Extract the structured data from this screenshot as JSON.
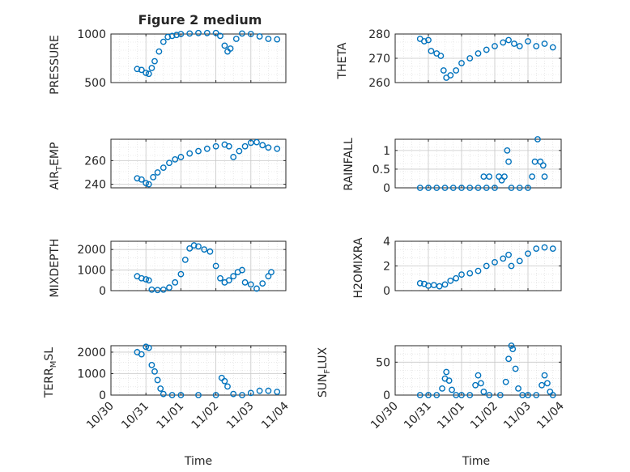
{
  "figure": {
    "title": "Figure 2 medium",
    "series_color": "#0072bd",
    "x_tick_labels": [
      "10/30",
      "10/31",
      "11/01",
      "11/02",
      "11/03",
      "11/04"
    ],
    "x_label": "Time"
  },
  "chart_data": [
    {
      "type": "scatter",
      "id": "pressure",
      "ylabel": "PRESSURE",
      "xlim": [
        "10/30",
        "11/04"
      ],
      "ylim": [
        500,
        1000
      ],
      "yticks": [
        500,
        1000
      ],
      "grid": true,
      "points": [
        [
          "10/30 18:00",
          640
        ],
        [
          "10/30 21:00",
          630
        ],
        [
          "10/31 00:00",
          600
        ],
        [
          "10/31 02:00",
          590
        ],
        [
          "10/31 04:00",
          650
        ],
        [
          "10/31 06:00",
          720
        ],
        [
          "10/31 09:00",
          820
        ],
        [
          "10/31 12:00",
          920
        ],
        [
          "10/31 15:00",
          970
        ],
        [
          "10/31 18:00",
          980
        ],
        [
          "10/31 21:00",
          990
        ],
        [
          "11/01 00:00",
          1000
        ],
        [
          "11/01 06:00",
          1005
        ],
        [
          "11/01 12:00",
          1010
        ],
        [
          "11/01 18:00",
          1010
        ],
        [
          "11/02 00:00",
          1010
        ],
        [
          "11/02 03:00",
          980
        ],
        [
          "11/02 06:00",
          880
        ],
        [
          "11/02 08:00",
          820
        ],
        [
          "11/02 10:00",
          850
        ],
        [
          "11/02 14:00",
          950
        ],
        [
          "11/02 18:00",
          1005
        ],
        [
          "11/03 00:00",
          1000
        ],
        [
          "11/03 06:00",
          975
        ],
        [
          "11/03 12:00",
          950
        ],
        [
          "11/03 18:00",
          945
        ]
      ]
    },
    {
      "type": "scatter",
      "id": "theta",
      "ylabel": "THETA",
      "xlim": [
        "10/30",
        "11/04"
      ],
      "ylim": [
        260,
        280
      ],
      "yticks": [
        260,
        270,
        280
      ],
      "grid": true,
      "points": [
        [
          "10/30 18:00",
          278
        ],
        [
          "10/30 21:00",
          277
        ],
        [
          "10/31 00:00",
          277.5
        ],
        [
          "10/31 02:00",
          273
        ],
        [
          "10/31 06:00",
          272
        ],
        [
          "10/31 09:00",
          271
        ],
        [
          "10/31 11:00",
          265
        ],
        [
          "10/31 13:00",
          262
        ],
        [
          "10/31 16:00",
          263
        ],
        [
          "10/31 20:00",
          265
        ],
        [
          "11/01 00:00",
          268
        ],
        [
          "11/01 06:00",
          270
        ],
        [
          "11/01 12:00",
          272
        ],
        [
          "11/01 18:00",
          273.5
        ],
        [
          "11/02 00:00",
          275
        ],
        [
          "11/02 06:00",
          276.5
        ],
        [
          "11/02 10:00",
          277.5
        ],
        [
          "11/02 14:00",
          276
        ],
        [
          "11/02 18:00",
          275
        ],
        [
          "11/03 00:00",
          277
        ],
        [
          "11/03 06:00",
          275
        ],
        [
          "11/03 12:00",
          276
        ],
        [
          "11/03 18:00",
          274.5
        ]
      ]
    },
    {
      "type": "scatter",
      "id": "air-temp",
      "ylabel": "AIR_TEMP",
      "xlim": [
        "10/30",
        "11/04"
      ],
      "ylim": [
        237,
        278
      ],
      "yticks": [
        240,
        260
      ],
      "grid": true,
      "points": [
        [
          "10/30 18:00",
          245
        ],
        [
          "10/30 21:00",
          244
        ],
        [
          "10/31 00:00",
          241
        ],
        [
          "10/31 02:00",
          240
        ],
        [
          "10/31 05:00",
          246
        ],
        [
          "10/31 08:00",
          250
        ],
        [
          "10/31 12:00",
          254
        ],
        [
          "10/31 16:00",
          258
        ],
        [
          "10/31 20:00",
          261
        ],
        [
          "11/01 00:00",
          263
        ],
        [
          "11/01 06:00",
          266
        ],
        [
          "11/01 12:00",
          268
        ],
        [
          "11/01 18:00",
          270
        ],
        [
          "11/02 00:00",
          272
        ],
        [
          "11/02 06:00",
          273.5
        ],
        [
          "11/02 09:00",
          272
        ],
        [
          "11/02 12:00",
          263
        ],
        [
          "11/02 16:00",
          268
        ],
        [
          "11/02 20:00",
          272
        ],
        [
          "11/03 00:00",
          275
        ],
        [
          "11/03 04:00",
          275.5
        ],
        [
          "11/03 08:00",
          273
        ],
        [
          "11/03 12:00",
          271
        ],
        [
          "11/03 18:00",
          270
        ]
      ]
    },
    {
      "type": "scatter",
      "id": "rainfall",
      "ylabel": "RAINFALL",
      "xlim": [
        "10/30",
        "11/04"
      ],
      "ylim": [
        0,
        1.3
      ],
      "yticks": [
        0,
        0.5,
        1
      ],
      "grid": true,
      "points": [
        [
          "10/30 18:00",
          0
        ],
        [
          "10/31 00:00",
          0
        ],
        [
          "10/31 06:00",
          0
        ],
        [
          "10/31 12:00",
          0
        ],
        [
          "10/31 18:00",
          0
        ],
        [
          "11/01 00:00",
          0
        ],
        [
          "11/01 06:00",
          0
        ],
        [
          "11/01 12:00",
          0
        ],
        [
          "11/01 16:00",
          0.3
        ],
        [
          "11/01 18:00",
          0
        ],
        [
          "11/01 20:00",
          0.3
        ],
        [
          "11/02 00:00",
          0
        ],
        [
          "11/02 03:00",
          0.3
        ],
        [
          "11/02 05:00",
          0.2
        ],
        [
          "11/02 07:00",
          0.3
        ],
        [
          "11/02 09:00",
          1.0
        ],
        [
          "11/02 10:00",
          0.7
        ],
        [
          "11/02 12:00",
          0
        ],
        [
          "11/02 18:00",
          0
        ],
        [
          "11/03 00:00",
          0
        ],
        [
          "11/03 03:00",
          0.3
        ],
        [
          "11/03 05:00",
          0.7
        ],
        [
          "11/03 07:00",
          1.3
        ],
        [
          "11/03 09:00",
          0.7
        ],
        [
          "11/03 11:00",
          0.6
        ],
        [
          "11/03 12:00",
          0.3
        ]
      ]
    },
    {
      "type": "scatter",
      "id": "mixdepth",
      "ylabel": "MIXDEPTH",
      "xlim": [
        "10/30",
        "11/04"
      ],
      "ylim": [
        0,
        2400
      ],
      "yticks": [
        0,
        1000,
        2000
      ],
      "grid": true,
      "points": [
        [
          "10/30 18:00",
          700
        ],
        [
          "10/30 21:00",
          600
        ],
        [
          "10/31 00:00",
          550
        ],
        [
          "10/31 02:00",
          500
        ],
        [
          "10/31 04:00",
          50
        ],
        [
          "10/31 08:00",
          30
        ],
        [
          "10/31 12:00",
          50
        ],
        [
          "10/31 16:00",
          150
        ],
        [
          "10/31 20:00",
          400
        ],
        [
          "11/01 00:00",
          800
        ],
        [
          "11/01 03:00",
          1500
        ],
        [
          "11/01 06:00",
          2050
        ],
        [
          "11/01 09:00",
          2200
        ],
        [
          "11/01 12:00",
          2150
        ],
        [
          "11/01 16:00",
          2000
        ],
        [
          "11/01 20:00",
          1900
        ],
        [
          "11/02 00:00",
          1200
        ],
        [
          "11/02 03:00",
          600
        ],
        [
          "11/02 06:00",
          400
        ],
        [
          "11/02 09:00",
          500
        ],
        [
          "11/02 12:00",
          700
        ],
        [
          "11/02 15:00",
          900
        ],
        [
          "11/02 18:00",
          1000
        ],
        [
          "11/02 20:00",
          400
        ],
        [
          "11/03 00:00",
          300
        ],
        [
          "11/03 04:00",
          100
        ],
        [
          "11/03 08:00",
          350
        ],
        [
          "11/03 12:00",
          700
        ],
        [
          "11/03 14:00",
          900
        ]
      ]
    },
    {
      "type": "scatter",
      "id": "h2omixra",
      "ylabel": "H2OMIXRA",
      "xlim": [
        "10/30",
        "11/04"
      ],
      "ylim": [
        0,
        4
      ],
      "yticks": [
        0,
        2,
        4
      ],
      "grid": true,
      "points": [
        [
          "10/30 18:00",
          0.6
        ],
        [
          "10/30 21:00",
          0.55
        ],
        [
          "10/31 00:00",
          0.4
        ],
        [
          "10/31 04:00",
          0.45
        ],
        [
          "10/31 08:00",
          0.35
        ],
        [
          "10/31 12:00",
          0.5
        ],
        [
          "10/31 16:00",
          0.8
        ],
        [
          "10/31 20:00",
          1.0
        ],
        [
          "11/01 00:00",
          1.3
        ],
        [
          "11/01 06:00",
          1.4
        ],
        [
          "11/01 12:00",
          1.6
        ],
        [
          "11/01 18:00",
          2.0
        ],
        [
          "11/02 00:00",
          2.3
        ],
        [
          "11/02 06:00",
          2.6
        ],
        [
          "11/02 10:00",
          2.9
        ],
        [
          "11/02 12:00",
          2.0
        ],
        [
          "11/02 18:00",
          2.4
        ],
        [
          "11/03 00:00",
          3.0
        ],
        [
          "11/03 06:00",
          3.4
        ],
        [
          "11/03 12:00",
          3.5
        ],
        [
          "11/03 18:00",
          3.4
        ]
      ]
    },
    {
      "type": "scatter",
      "id": "terr-msl",
      "ylabel": "TERR_MSL",
      "xlim": [
        "10/30",
        "11/04"
      ],
      "ylim": [
        0,
        2300
      ],
      "yticks": [
        0,
        1000,
        2000
      ],
      "grid": true,
      "points": [
        [
          "10/30 18:00",
          2000
        ],
        [
          "10/30 21:00",
          1900
        ],
        [
          "10/31 00:00",
          2250
        ],
        [
          "10/31 02:00",
          2200
        ],
        [
          "10/31 04:00",
          1400
        ],
        [
          "10/31 06:00",
          1100
        ],
        [
          "10/31 08:00",
          700
        ],
        [
          "10/31 10:00",
          300
        ],
        [
          "10/31 12:00",
          50
        ],
        [
          "10/31 18:00",
          0
        ],
        [
          "11/01 00:00",
          0
        ],
        [
          "11/01 12:00",
          0
        ],
        [
          "11/02 00:00",
          0
        ],
        [
          "11/02 04:00",
          800
        ],
        [
          "11/02 06:00",
          650
        ],
        [
          "11/02 08:00",
          400
        ],
        [
          "11/02 12:00",
          50
        ],
        [
          "11/02 18:00",
          0
        ],
        [
          "11/03 00:00",
          100
        ],
        [
          "11/03 06:00",
          200
        ],
        [
          "11/03 12:00",
          200
        ],
        [
          "11/03 18:00",
          150
        ]
      ]
    },
    {
      "type": "scatter",
      "id": "sun-flux",
      "ylabel": "SUN_FLUX",
      "xlim": [
        "10/30",
        "11/04"
      ],
      "ylim": [
        0,
        75
      ],
      "yticks": [
        0,
        50
      ],
      "grid": true,
      "points": [
        [
          "10/30 18:00",
          0
        ],
        [
          "10/31 00:00",
          0
        ],
        [
          "10/31 06:00",
          0
        ],
        [
          "10/31 10:00",
          10
        ],
        [
          "10/31 12:00",
          25
        ],
        [
          "10/31 13:00",
          35
        ],
        [
          "10/31 15:00",
          22
        ],
        [
          "10/31 17:00",
          8
        ],
        [
          "10/31 20:00",
          0
        ],
        [
          "11/01 00:00",
          0
        ],
        [
          "11/01 06:00",
          0
        ],
        [
          "11/01 10:00",
          15
        ],
        [
          "11/01 12:00",
          30
        ],
        [
          "11/01 14:00",
          18
        ],
        [
          "11/01 16:00",
          5
        ],
        [
          "11/01 20:00",
          0
        ],
        [
          "11/02 04:00",
          0
        ],
        [
          "11/02 08:00",
          20
        ],
        [
          "11/02 10:00",
          55
        ],
        [
          "11/02 12:00",
          75
        ],
        [
          "11/02 13:00",
          70
        ],
        [
          "11/02 15:00",
          40
        ],
        [
          "11/02 17:00",
          10
        ],
        [
          "11/02 20:00",
          0
        ],
        [
          "11/03 00:00",
          0
        ],
        [
          "11/03 06:00",
          0
        ],
        [
          "11/03 10:00",
          15
        ],
        [
          "11/03 12:00",
          30
        ],
        [
          "11/03 14:00",
          18
        ],
        [
          "11/03 16:00",
          5
        ],
        [
          "11/03 18:00",
          0
        ]
      ]
    }
  ]
}
